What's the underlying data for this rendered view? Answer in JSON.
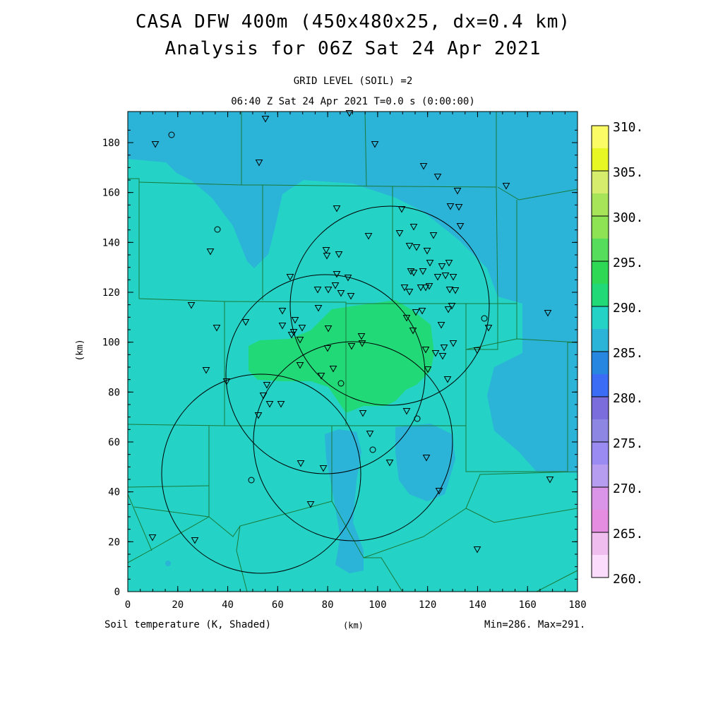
{
  "header": {
    "title_line1": "CASA DFW 400m (450x480x25, dx=0.4 km)",
    "title_line2": "Analysis for 06Z Sat 24 Apr 2021",
    "grid_level": "GRID LEVEL (SOIL) =2",
    "time_line": "06:40 Z Sat 24 Apr 2021   T=0.0 s (0:00:00)"
  },
  "footer": {
    "variable_label": "Soil temperature (K, Shaded)",
    "x_unit": "(km)",
    "minmax": "Min=286. Max=291."
  },
  "axes": {
    "y_label": "(km)",
    "x_ticks": [
      "0",
      "20",
      "40",
      "60",
      "80",
      "100",
      "120",
      "140",
      "160",
      "180"
    ],
    "y_ticks": [
      "0",
      "20",
      "40",
      "60",
      "80",
      "100",
      "120",
      "140",
      "160",
      "180"
    ]
  },
  "colorbar": {
    "labels": [
      "310.",
      "305.",
      "300.",
      "295.",
      "290.",
      "285.",
      "280.",
      "275.",
      "270.",
      "265.",
      "260."
    ],
    "colors": [
      "#fbfb66",
      "#e6f724",
      "#d5ec6d",
      "#a7e45a",
      "#8ee354",
      "#55dd5b",
      "#2ed855",
      "#22d977",
      "#24d2c6",
      "#2bb3d8",
      "#2686e0",
      "#3a6cf5",
      "#7b6edc",
      "#8d86e3",
      "#998bf1",
      "#b79df0",
      "#da95e9",
      "#e58de1",
      "#efbeef",
      "#fcdcfc"
    ]
  },
  "map": {
    "colors": {
      "light": "#24d2c6",
      "mid": "#2bb3d8",
      "green": "#22d977",
      "county_line": "#1a7a3a",
      "ring": "#000000"
    }
  }
}
